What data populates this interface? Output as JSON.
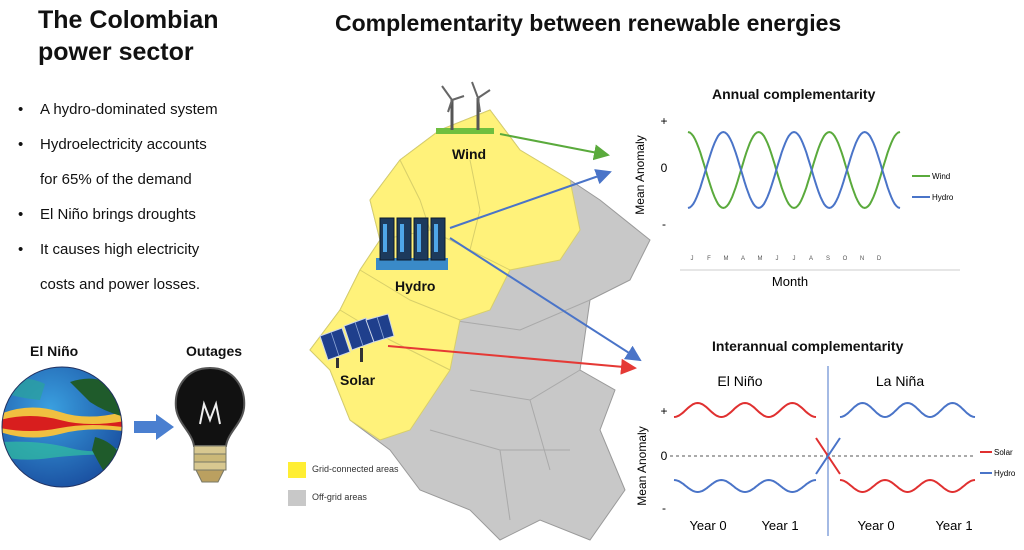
{
  "left_panel": {
    "title_line1": "The Colombian",
    "title_line2": "power sector",
    "bullets": [
      [
        "A hydro-dominated system"
      ],
      [
        "Hydroelectricity accounts",
        "for 65% of the demand"
      ],
      [
        "El Niño brings droughts"
      ],
      [
        "It causes high electricity",
        "costs and power losses."
      ]
    ],
    "el_nino_label": "El Niño",
    "outages_label": "Outages"
  },
  "main_title": "Complementarity between renewable energies",
  "map": {
    "wind_label": "Wind",
    "hydro_label": "Hydro",
    "solar_label": "Solar",
    "legend": [
      {
        "label": "Grid-connected areas",
        "color": "#ffee33"
      },
      {
        "label": "Off-grid areas",
        "color": "#c8c8c8"
      }
    ]
  },
  "colors": {
    "wind": "#5aaa3c",
    "hydro": "#4a74c8",
    "solar": "#e03030",
    "arrow_red": "#e53935"
  },
  "chart_data": [
    {
      "type": "line",
      "title": "Annual complementarity",
      "xlabel": "Month",
      "ylabel": "Mean Anomaly",
      "ytick_labels": [
        "+",
        "0",
        "-"
      ],
      "categories": [
        "J",
        "F",
        "M",
        "A",
        "M",
        "J",
        "J",
        "A",
        "S",
        "O",
        "N",
        "D"
      ],
      "series": [
        {
          "name": "Wind",
          "color": "#5aaa3c"
        },
        {
          "name": "Hydro",
          "color": "#4a74c8"
        }
      ]
    },
    {
      "type": "line",
      "title": "Interannual complementarity",
      "ylabel": "Mean Anomaly",
      "ytick_labels": [
        "+",
        "0",
        "-"
      ],
      "phase_labels": [
        "El Niño",
        "La Niña"
      ],
      "xtick_labels": [
        "Year 0",
        "Year 1",
        "Year 0",
        "Year 1"
      ],
      "series": [
        {
          "name": "Solar",
          "color": "#e03030"
        },
        {
          "name": "Hydro",
          "color": "#4a74c8"
        }
      ]
    }
  ]
}
